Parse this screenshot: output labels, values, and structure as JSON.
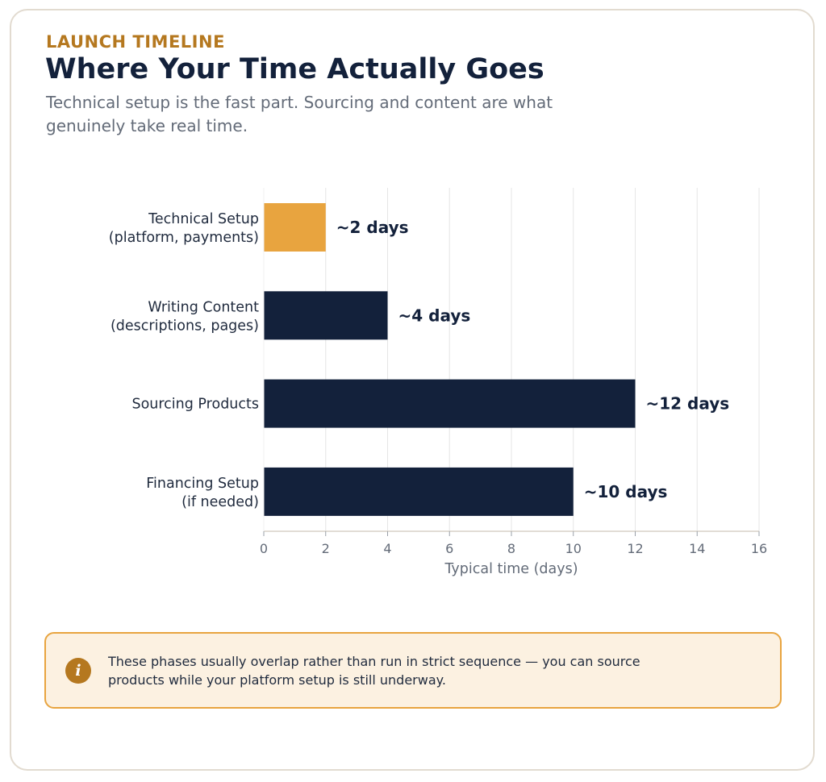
{
  "header": {
    "eyebrow": "LAUNCH TIMELINE",
    "title": "Where Your Time Actually Goes",
    "subtitle": "Technical setup is the fast part. Sourcing and content are what genuinely take real time."
  },
  "chart_data": {
    "type": "bar",
    "orientation": "horizontal",
    "categories": [
      [
        "Technical Setup",
        "(platform, payments)"
      ],
      [
        "Writing Content",
        "(descriptions, pages)"
      ],
      [
        "Sourcing Products"
      ],
      [
        "Financing Setup",
        "(if needed)"
      ]
    ],
    "values": [
      2,
      4,
      12,
      10
    ],
    "data_labels": [
      "~2 days",
      "~4 days",
      "~12 days",
      "~10 days"
    ],
    "colors": [
      "#e8a43f",
      "#13213b",
      "#13213b",
      "#13213b"
    ],
    "xlabel": "Typical time (days)",
    "xlim": [
      0,
      16
    ],
    "xticks": [
      0,
      2,
      4,
      6,
      8,
      10,
      12,
      14,
      16
    ],
    "grid": "vertical"
  },
  "note": {
    "icon": "info-icon",
    "icon_glyph": "i",
    "text": "These phases usually overlap rather than run in strict sequence — you can source products while your platform setup is still underway."
  }
}
